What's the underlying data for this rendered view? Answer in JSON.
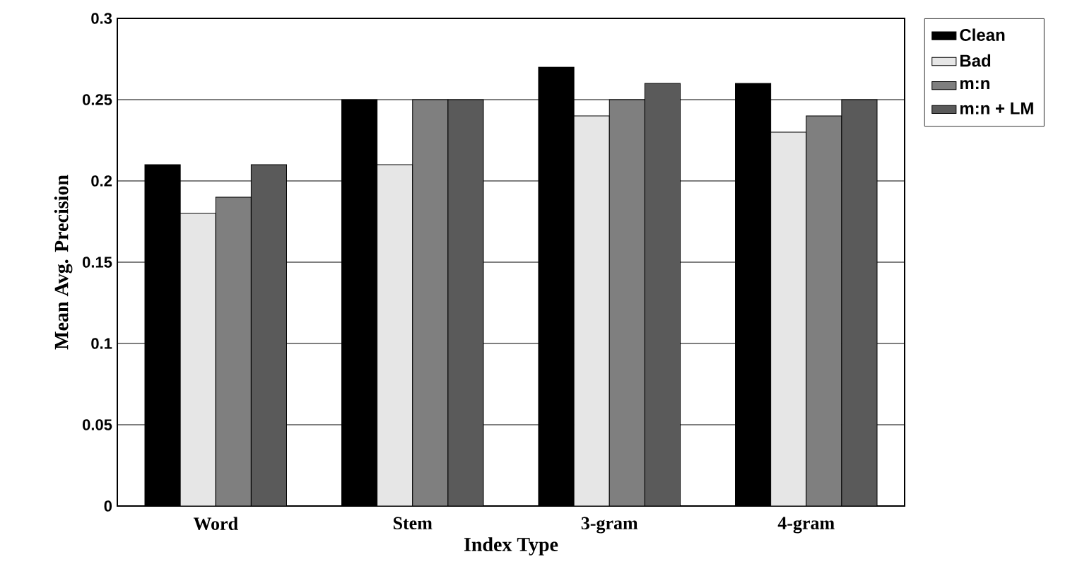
{
  "chart_data": {
    "type": "bar",
    "xlabel": "Index Type",
    "ylabel": "Mean Avg. Precision",
    "categories": [
      "Word",
      "Stem",
      "3-gram",
      "4-gram"
    ],
    "series": [
      {
        "name": "Clean",
        "color": "#000000",
        "values": [
          0.21,
          0.25,
          0.27,
          0.26
        ]
      },
      {
        "name": "Bad",
        "color": "#e6e6e6",
        "values": [
          0.18,
          0.21,
          0.24,
          0.23
        ]
      },
      {
        "name": "m:n",
        "color": "#7f7f7f",
        "values": [
          0.19,
          0.25,
          0.25,
          0.24
        ]
      },
      {
        "name": "m:n + LM",
        "color": "#5a5a5a",
        "values": [
          0.21,
          0.25,
          0.26,
          0.25
        ]
      }
    ],
    "ylim": [
      0,
      0.3
    ],
    "yticks": [
      0,
      0.05,
      0.1,
      0.15,
      0.2,
      0.25,
      0.3
    ],
    "grid": "y",
    "legend": "top right"
  }
}
